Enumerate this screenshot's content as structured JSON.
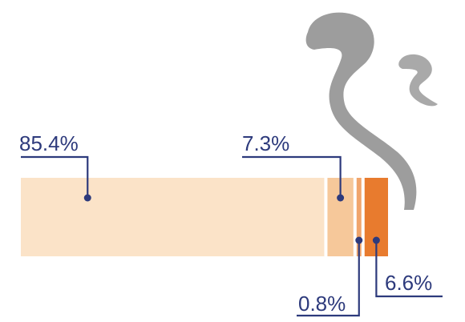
{
  "chart_data": {
    "type": "bar",
    "orientation": "horizontal-stacked",
    "title": "",
    "xlabel": "",
    "ylabel": "",
    "categories": [
      "segment-1",
      "segment-2",
      "segment-3",
      "segment-4"
    ],
    "values": [
      85.4,
      7.3,
      0.8,
      6.6
    ],
    "labels": [
      "85.4%",
      "7.3%",
      "0.8%",
      "6.6%"
    ],
    "label_side": [
      "top",
      "top",
      "bottom",
      "bottom"
    ],
    "colors": [
      "#fbe3c8",
      "#f6c89a",
      "#f0a56c",
      "#e87b2e"
    ],
    "leader_color": "#2d3a7c",
    "smoke_color": "#8c8c8c",
    "decoration": "smoke-icon"
  }
}
